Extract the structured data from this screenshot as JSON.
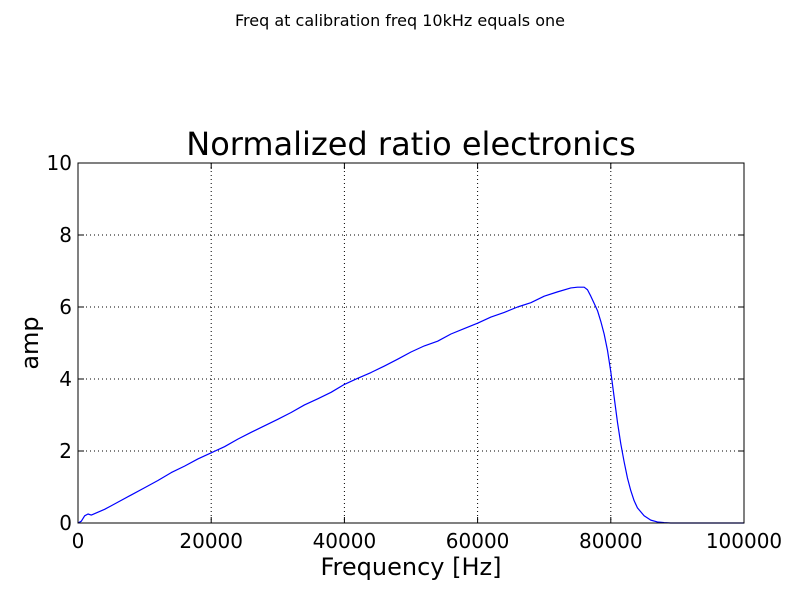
{
  "figure": {
    "suptitle": "Freq at calibration freq 10kHz equals one"
  },
  "chart_data": {
    "type": "line",
    "title": "Normalized ratio electronics",
    "xlabel": "Frequency [Hz]",
    "ylabel": "amp",
    "xlim": [
      0,
      100000
    ],
    "ylim": [
      0,
      10
    ],
    "xticks": [
      0,
      20000,
      40000,
      60000,
      80000,
      100000
    ],
    "xtick_labels": [
      "0",
      "20000",
      "40000",
      "60000",
      "80000",
      "100000"
    ],
    "yticks": [
      0,
      2,
      4,
      6,
      8,
      10
    ],
    "ytick_labels": [
      "0",
      "2",
      "4",
      "6",
      "8",
      "10"
    ],
    "grid": true,
    "series": [
      {
        "color": "#0000ff",
        "x": [
          0,
          500,
          1000,
          1500,
          2000,
          3000,
          4000,
          5000,
          6000,
          8000,
          10000,
          12000,
          14000,
          16000,
          18000,
          20000,
          22000,
          24000,
          26000,
          28000,
          30000,
          32000,
          34000,
          36000,
          38000,
          40000,
          42000,
          44000,
          46000,
          48000,
          50000,
          52000,
          54000,
          56000,
          58000,
          60000,
          62000,
          64000,
          66000,
          68000,
          70000,
          72000,
          74000,
          75000,
          76000,
          76500,
          77000,
          77500,
          78000,
          78500,
          79000,
          79500,
          80000,
          80500,
          81000,
          81500,
          82000,
          82500,
          83000,
          83500,
          84000,
          85000,
          86000,
          87000,
          88000,
          89000,
          90000,
          92000,
          95000,
          98000,
          100000
        ],
        "y": [
          0.0,
          0.05,
          0.2,
          0.25,
          0.22,
          0.3,
          0.38,
          0.48,
          0.58,
          0.78,
          0.98,
          1.18,
          1.4,
          1.58,
          1.78,
          1.95,
          2.12,
          2.33,
          2.52,
          2.7,
          2.88,
          3.07,
          3.28,
          3.45,
          3.63,
          3.85,
          4.02,
          4.18,
          4.36,
          4.55,
          4.75,
          4.92,
          5.05,
          5.25,
          5.4,
          5.55,
          5.72,
          5.85,
          6.0,
          6.12,
          6.3,
          6.42,
          6.53,
          6.55,
          6.55,
          6.48,
          6.3,
          6.1,
          5.9,
          5.6,
          5.25,
          4.8,
          4.2,
          3.5,
          2.8,
          2.2,
          1.7,
          1.25,
          0.9,
          0.62,
          0.42,
          0.2,
          0.08,
          0.03,
          0.01,
          0.0,
          0.0,
          0.0,
          0.0,
          0.0,
          0.0
        ]
      }
    ]
  }
}
